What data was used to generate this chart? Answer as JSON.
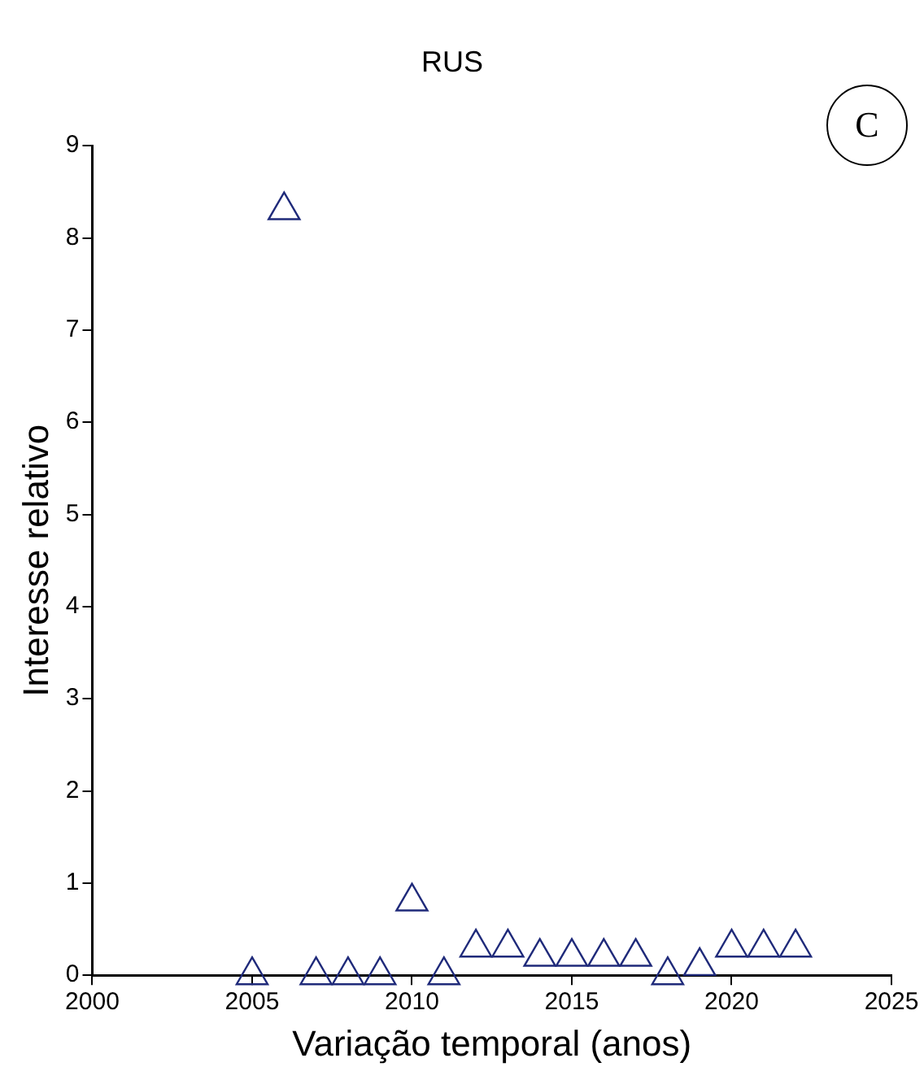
{
  "chart_data": {
    "type": "scatter",
    "title": "RUS",
    "xlabel": "Variação temporal (anos)",
    "ylabel": "Interesse relativo",
    "annotations": [
      "C"
    ],
    "x": [
      2005,
      2006,
      2007,
      2008,
      2009,
      2010,
      2011,
      2012,
      2013,
      2014,
      2015,
      2016,
      2017,
      2018,
      2019,
      2020,
      2021,
      2022
    ],
    "series": [
      {
        "color": "#1f2a7a",
        "values": [
          0,
          8.3,
          0,
          0,
          0,
          0.8,
          0,
          0.3,
          0.3,
          0.2,
          0.2,
          0.2,
          0.2,
          0,
          0.1,
          0.3,
          0.3,
          0.3
        ]
      }
    ],
    "xlim": [
      2000,
      2025
    ],
    "xticks": [
      2000,
      2005,
      2010,
      2015,
      2020,
      2025
    ],
    "ylim": [
      0,
      9
    ],
    "yticks": [
      0,
      1,
      2,
      3,
      4,
      5,
      6,
      7,
      8,
      9
    ],
    "marker": "triangle",
    "grid": false,
    "legend": false
  }
}
